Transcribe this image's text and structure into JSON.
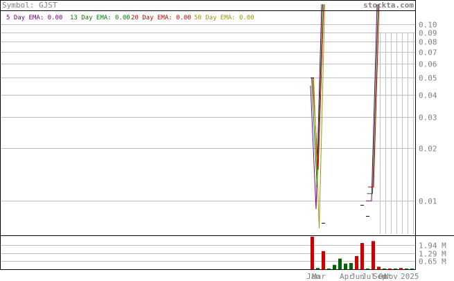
{
  "header": {
    "symbol_label": "Symbol: GJST",
    "site": "stockta.com"
  },
  "legend": [
    {
      "label": "5 Day EMA: 0.00",
      "color": "#800080"
    },
    {
      "label": "13 Day EMA: 0.00",
      "color": "#008000"
    },
    {
      "label": "20 Day EMA: 0.00",
      "color": "#cc0000"
    },
    {
      "label": "50 Day EMA: 0.00",
      "color": "#999900"
    }
  ],
  "colors": {
    "grid": "#c0c0c0",
    "axis_text": "#808080",
    "frame": "#000000",
    "up": "#006600",
    "down": "#cc0000",
    "ema5": "#800080",
    "ema13": "#008000",
    "ema20": "#cc0000",
    "ema50": "#999900"
  },
  "chart_data": [
    {
      "type": "line",
      "title": "Symbol: GJST",
      "yscale": "log",
      "ylim": [
        0.0065,
        0.135
      ],
      "y_ticks": [
        "0.10",
        "0.09",
        "0.08",
        "0.07",
        "0.06",
        "0.05",
        "0.04",
        "0.03",
        "0.02",
        "0.01"
      ],
      "y_tick_values": [
        0.1,
        0.09,
        0.08,
        0.07,
        0.06,
        0.05,
        0.04,
        0.03,
        0.02,
        0.01
      ],
      "x": [
        1,
        2,
        3,
        4,
        5,
        6,
        7,
        8,
        9,
        10,
        11,
        12,
        13,
        14,
        15,
        16,
        17,
        18,
        19
      ],
      "series": [
        {
          "name": "5 Day EMA: 0.00",
          "values": [
            0.045,
            0.009,
            0.13,
            null,
            null,
            null,
            null,
            null,
            null,
            null,
            0.01,
            0.01,
            0.13,
            null,
            null,
            null,
            null,
            null,
            null
          ]
        },
        {
          "name": "13 Day EMA: 0.00",
          "values": [
            0.05,
            0.012,
            0.13,
            null,
            null,
            null,
            null,
            null,
            null,
            null,
            0.011,
            0.011,
            0.13,
            null,
            null,
            null,
            null,
            null,
            null
          ]
        },
        {
          "name": "20 Day EMA: 0.00",
          "values": [
            0.05,
            0.015,
            0.13,
            null,
            null,
            null,
            null,
            null,
            null,
            null,
            0.012,
            0.012,
            0.13,
            null,
            null,
            null,
            null,
            null,
            null
          ]
        },
        {
          "name": "50 Day EMA: 0.00",
          "values": [
            0.05,
            0.007,
            0.13,
            null,
            null,
            null,
            null,
            null,
            null,
            null,
            null,
            null,
            null,
            null,
            null,
            null,
            null,
            null,
            null
          ]
        }
      ],
      "price_marks": [
        {
          "x": 1,
          "value": 0.05
        },
        {
          "x": 3,
          "value": 0.0075
        },
        {
          "x": 10,
          "value": 0.0095
        },
        {
          "x": 11,
          "value": 0.0082
        }
      ]
    },
    {
      "type": "bar",
      "title": "Volume",
      "ylim": [
        0,
        2.6
      ],
      "unit": "M",
      "y_ticks": [
        "1.94 M",
        "1.29 M",
        "0.65 M"
      ],
      "y_tick_values": [
        1.94,
        1.29,
        0.65
      ],
      "x_ticks": [
        "Jan",
        "Mar",
        "Apr",
        "Jun",
        "Jul",
        "Sep",
        "Oct",
        "Nov",
        "2025"
      ],
      "categories": [
        "1",
        "2",
        "3",
        "4",
        "5",
        "6",
        "7",
        "8",
        "9",
        "10",
        "11",
        "12",
        "13",
        "14",
        "15",
        "16",
        "17",
        "18",
        "19"
      ],
      "values": [
        2.6,
        0.1,
        1.45,
        0.05,
        0.35,
        0.85,
        0.45,
        0.5,
        1.05,
        2.1,
        0.05,
        2.25,
        0.2,
        0.05,
        0.05,
        0.05,
        0.1,
        0.05,
        0.05
      ],
      "directions": [
        "down",
        "up",
        "down",
        "up",
        "up",
        "up",
        "up",
        "up",
        "down",
        "down",
        "up",
        "down",
        "down",
        "up",
        "down",
        "up",
        "down",
        "up",
        "up"
      ]
    }
  ]
}
